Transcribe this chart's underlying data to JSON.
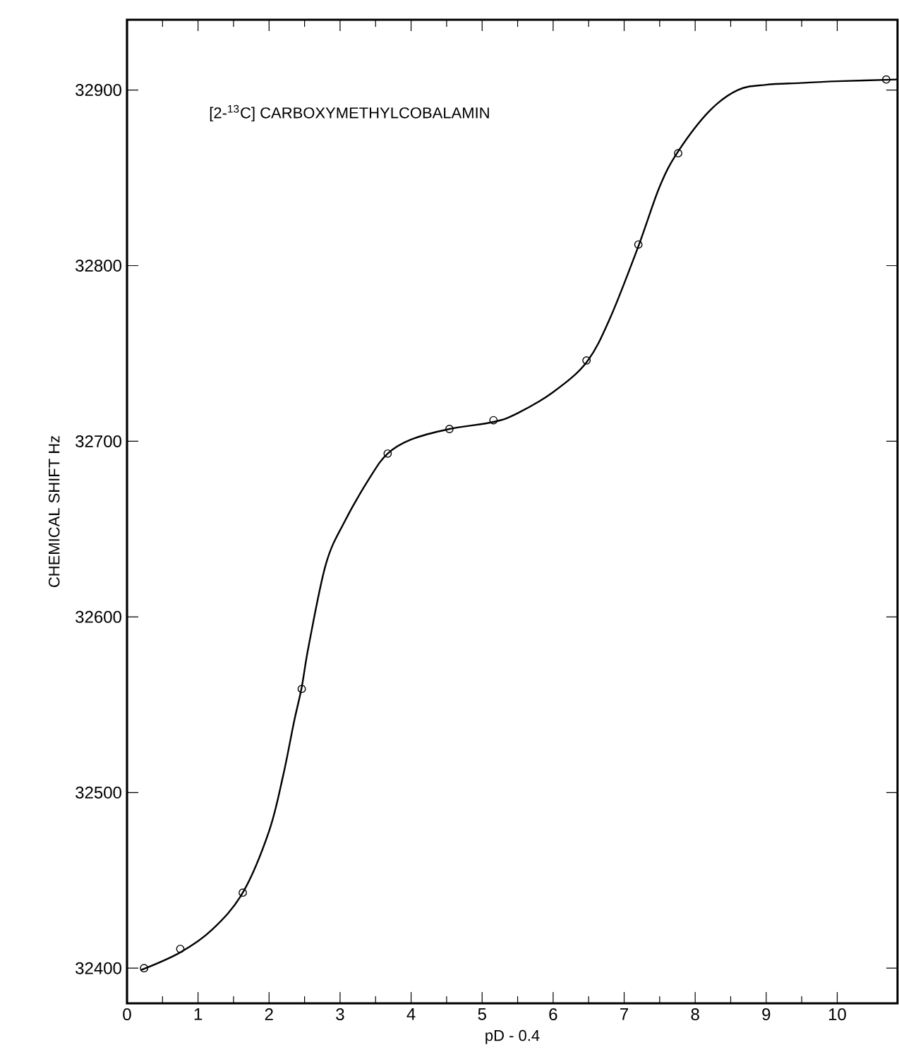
{
  "chart_data": {
    "type": "scatter",
    "xlabel": "pD - 0.4",
    "ylabel": "CHEMICAL SHIFT Hz",
    "annotations": [
      "[2-$^{13}$C] CARBOXYMETHYLCOBALAMIN"
    ],
    "xlim": [
      0,
      10.85
    ],
    "ylim": [
      32380,
      32940
    ],
    "xticks": [
      0,
      1,
      2,
      3,
      4,
      5,
      6,
      7,
      8,
      9,
      10
    ],
    "yticks": [
      32400,
      32500,
      32600,
      32700,
      32800,
      32900
    ],
    "series": [
      {
        "type": "line",
        "color": "#000000",
        "marker": "none",
        "line_style": "solid",
        "x": [
          0.2,
          0.75,
          1.2,
          1.63,
          2.0,
          2.2,
          2.35,
          2.46,
          2.56,
          2.8,
          3.06,
          3.43,
          3.67,
          4.0,
          4.54,
          5.16,
          5.5,
          6.0,
          6.47,
          6.8,
          7.2,
          7.5,
          7.76,
          8.2,
          8.6,
          9.0,
          9.48,
          10.0,
          10.85
        ],
        "values": [
          32399,
          32409,
          32422,
          32443,
          32478,
          32510,
          32540,
          32560,
          32584,
          32630,
          32654,
          32680,
          32693,
          32701,
          32707,
          32711,
          32716,
          32728,
          32745,
          32770,
          32811,
          32845,
          32865,
          32888,
          32900,
          32903,
          32904,
          32905,
          32906
        ]
      },
      {
        "color": "#000000",
        "marker": "circle",
        "x": [
          0.24,
          0.75,
          1.63,
          2.46,
          3.67,
          4.54,
          5.16,
          6.47,
          7.2,
          7.76,
          10.69
        ],
        "values": [
          32400,
          32411,
          32443,
          32559,
          32693,
          32707,
          32712,
          32746,
          32812,
          32864,
          32906
        ]
      }
    ]
  }
}
